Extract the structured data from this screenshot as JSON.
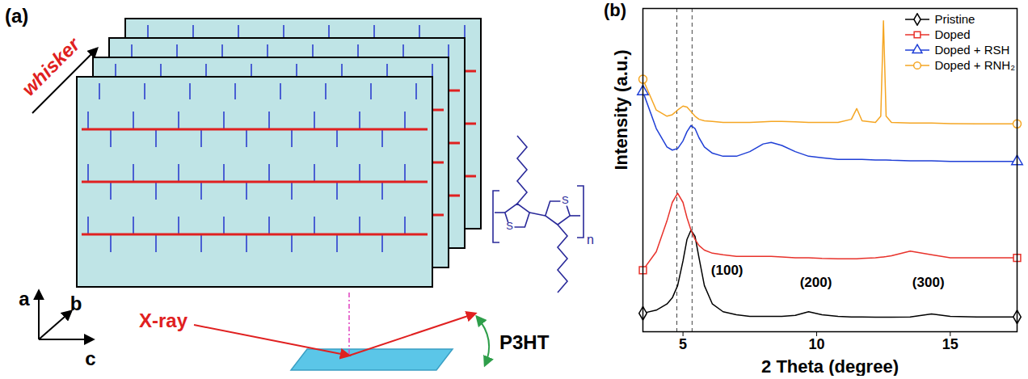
{
  "diagram": {
    "panel_label": "(a)",
    "direction_label": "whisker",
    "axes": [
      "a",
      "b",
      "c"
    ],
    "beam_label": "X-ray",
    "material_label": "P3HT",
    "structure_labels": [
      "S",
      "S",
      "n"
    ]
  },
  "chart_data": {
    "type": "line",
    "panel_label": "(b)",
    "x_label": "2 Theta (degree)",
    "y_label": "Intensity (a.u.)",
    "x": [
      3.5,
      4.0,
      4.4,
      4.6,
      4.8,
      5.0,
      5.15,
      5.3,
      5.45,
      5.6,
      5.8,
      6.1,
      6.5,
      7.0,
      7.5,
      8.0,
      8.3,
      8.7,
      9.2,
      9.7,
      10.2,
      10.8,
      11.3,
      11.5,
      11.7,
      12.2,
      12.4,
      12.5,
      12.6,
      12.8,
      13.5,
      14.3,
      15.0,
      16.0,
      17.0,
      17.5
    ],
    "series": [
      {
        "name": "Pristine",
        "color": "#000000",
        "marker": "diamond",
        "values": [
          6,
          7,
          9,
          11,
          15,
          23,
          30,
          33,
          31,
          24,
          15,
          9,
          6.5,
          5.5,
          5,
          5,
          5,
          5,
          5.3,
          6.5,
          5.5,
          5,
          4.8,
          4.8,
          4.8,
          4.7,
          4.7,
          4.7,
          4.7,
          4.7,
          4.8,
          5.8,
          5,
          4.8,
          4.8,
          4.8
        ]
      },
      {
        "name": "Doped",
        "color": "#e8322b",
        "marker": "square",
        "values": [
          20,
          26,
          36,
          42,
          45,
          42,
          37,
          33,
          30,
          28,
          26.5,
          25.5,
          25,
          24.5,
          24.5,
          24.5,
          24.5,
          24.3,
          24,
          24,
          23.8,
          23.7,
          23.7,
          23.7,
          23.8,
          24,
          24.2,
          24.3,
          24.4,
          24.7,
          26.2,
          25,
          24,
          24,
          24,
          24
        ]
      },
      {
        "name": "Doped + RSH",
        "color": "#1f3fd6",
        "marker": "triangle",
        "values": [
          78,
          66,
          60,
          59,
          59.5,
          62,
          65,
          67,
          66,
          63,
          60,
          58,
          57,
          57,
          58.5,
          61,
          61.5,
          60.5,
          58.5,
          57,
          56.5,
          56,
          56,
          56,
          56,
          55.8,
          55.8,
          55.8,
          55.8,
          55.7,
          55.5,
          55.5,
          55.3,
          55.3,
          55.3,
          55.3
        ]
      },
      {
        "name": "Doped + RNH₂",
        "color": "#f5a623",
        "marker": "circle",
        "values": [
          82,
          72,
          70,
          70.5,
          72,
          73.3,
          73,
          71.5,
          70,
          69,
          68.5,
          68.3,
          68,
          68,
          68,
          68.2,
          68.3,
          68.3,
          68.2,
          68,
          68,
          68,
          69,
          72.5,
          68.5,
          68,
          70,
          101,
          70,
          68,
          67.8,
          67.8,
          67.6,
          67.5,
          67.5,
          67.5
        ]
      }
    ],
    "xlim": [
      3.5,
      17.5
    ],
    "xticks": [
      5,
      10,
      15
    ],
    "ylim": [
      0,
      105
    ],
    "yticks": [],
    "tick_labels": "x",
    "grid": false,
    "legend": "top-right",
    "vlines": [
      4.77,
      5.34
    ],
    "annotations": [
      {
        "text": "(100)",
        "x": 6.65,
        "y": 20
      },
      {
        "text": "(200)",
        "x": 9.97,
        "y": 16
      },
      {
        "text": "(300)",
        "x": 14.18,
        "y": 16
      }
    ]
  }
}
